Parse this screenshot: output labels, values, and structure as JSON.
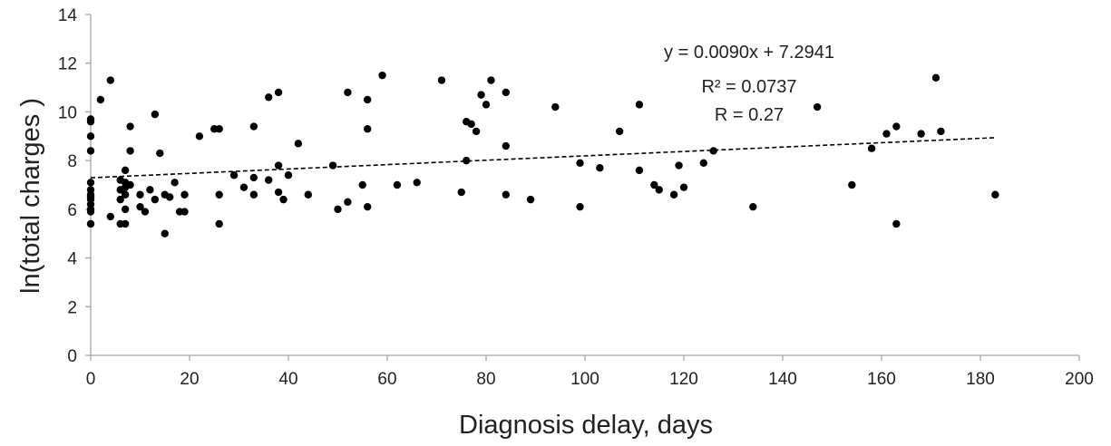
{
  "chart_data": {
    "type": "scatter",
    "title": "",
    "xlabel": "Diagnosis delay, days",
    "ylabel": "ln(total charges )",
    "xlim": [
      0,
      200
    ],
    "ylim": [
      0,
      14
    ],
    "x_ticks": [
      0,
      20,
      40,
      60,
      80,
      100,
      120,
      140,
      160,
      180,
      200
    ],
    "y_ticks": [
      0,
      2,
      4,
      6,
      8,
      10,
      12,
      14
    ],
    "grid": false,
    "legend": "none",
    "colors": {
      "points": "#000000",
      "trendline": "#000000",
      "axis": "#a6a6a6"
    },
    "annotations": [
      "y = 0.0090x + 7.2941",
      "R² = 0.0737",
      "R = 0.27"
    ],
    "trendline": {
      "slope": 0.009,
      "intercept": 7.2941,
      "x_range": [
        0,
        183
      ],
      "style": "dashed"
    },
    "points": [
      [
        0,
        9.7
      ],
      [
        0,
        9.6
      ],
      [
        0,
        9.0
      ],
      [
        0,
        8.4
      ],
      [
        0,
        7.1
      ],
      [
        0,
        6.8
      ],
      [
        0,
        6.6
      ],
      [
        0,
        6.5
      ],
      [
        0,
        6.4
      ],
      [
        0,
        6.2
      ],
      [
        0,
        6.0
      ],
      [
        0,
        5.9
      ],
      [
        0,
        5.4
      ],
      [
        2,
        10.5
      ],
      [
        4,
        11.3
      ],
      [
        4,
        5.7
      ],
      [
        6,
        7.2
      ],
      [
        6,
        6.8
      ],
      [
        6,
        6.4
      ],
      [
        6,
        5.4
      ],
      [
        7,
        7.6
      ],
      [
        7,
        7.1
      ],
      [
        7,
        6.9
      ],
      [
        7,
        6.6
      ],
      [
        7,
        6.0
      ],
      [
        7,
        5.4
      ],
      [
        8,
        9.4
      ],
      [
        8,
        8.4
      ],
      [
        8,
        7.0
      ],
      [
        10,
        6.6
      ],
      [
        10,
        6.1
      ],
      [
        11,
        5.9
      ],
      [
        12,
        6.8
      ],
      [
        13,
        9.9
      ],
      [
        13,
        6.4
      ],
      [
        14,
        8.3
      ],
      [
        15,
        6.6
      ],
      [
        15,
        5.0
      ],
      [
        16,
        6.5
      ],
      [
        17,
        7.1
      ],
      [
        18,
        5.9
      ],
      [
        19,
        6.6
      ],
      [
        19,
        5.9
      ],
      [
        22,
        9.0
      ],
      [
        25,
        9.3
      ],
      [
        26,
        9.3
      ],
      [
        26,
        6.6
      ],
      [
        26,
        5.4
      ],
      [
        29,
        7.4
      ],
      [
        31,
        6.9
      ],
      [
        33,
        9.4
      ],
      [
        33,
        7.3
      ],
      [
        33,
        6.6
      ],
      [
        36,
        10.6
      ],
      [
        36,
        7.2
      ],
      [
        38,
        10.8
      ],
      [
        38,
        7.8
      ],
      [
        38,
        6.7
      ],
      [
        39,
        6.4
      ],
      [
        40,
        7.4
      ],
      [
        42,
        8.7
      ],
      [
        44,
        6.6
      ],
      [
        49,
        7.8
      ],
      [
        50,
        6.0
      ],
      [
        52,
        10.8
      ],
      [
        52,
        6.3
      ],
      [
        55,
        7.0
      ],
      [
        56,
        10.5
      ],
      [
        56,
        9.3
      ],
      [
        56,
        6.1
      ],
      [
        59,
        11.5
      ],
      [
        62,
        7.0
      ],
      [
        66,
        7.1
      ],
      [
        71,
        11.3
      ],
      [
        75,
        6.7
      ],
      [
        76,
        9.6
      ],
      [
        76,
        8.0
      ],
      [
        77,
        9.5
      ],
      [
        78,
        9.2
      ],
      [
        79,
        10.7
      ],
      [
        80,
        10.3
      ],
      [
        81,
        11.3
      ],
      [
        84,
        10.8
      ],
      [
        84,
        8.6
      ],
      [
        84,
        6.6
      ],
      [
        89,
        6.4
      ],
      [
        94,
        10.2
      ],
      [
        99,
        7.9
      ],
      [
        99,
        6.1
      ],
      [
        103,
        7.7
      ],
      [
        107,
        9.2
      ],
      [
        111,
        10.3
      ],
      [
        111,
        7.6
      ],
      [
        114,
        7.0
      ],
      [
        115,
        6.8
      ],
      [
        118,
        6.6
      ],
      [
        119,
        7.8
      ],
      [
        120,
        6.9
      ],
      [
        124,
        7.9
      ],
      [
        126,
        8.4
      ],
      [
        134,
        6.1
      ],
      [
        147,
        10.2
      ],
      [
        154,
        7.0
      ],
      [
        158,
        8.5
      ],
      [
        161,
        9.1
      ],
      [
        163,
        9.4
      ],
      [
        163,
        5.4
      ],
      [
        168,
        9.1
      ],
      [
        171,
        11.4
      ],
      [
        172,
        9.2
      ],
      [
        183,
        6.6
      ]
    ]
  }
}
